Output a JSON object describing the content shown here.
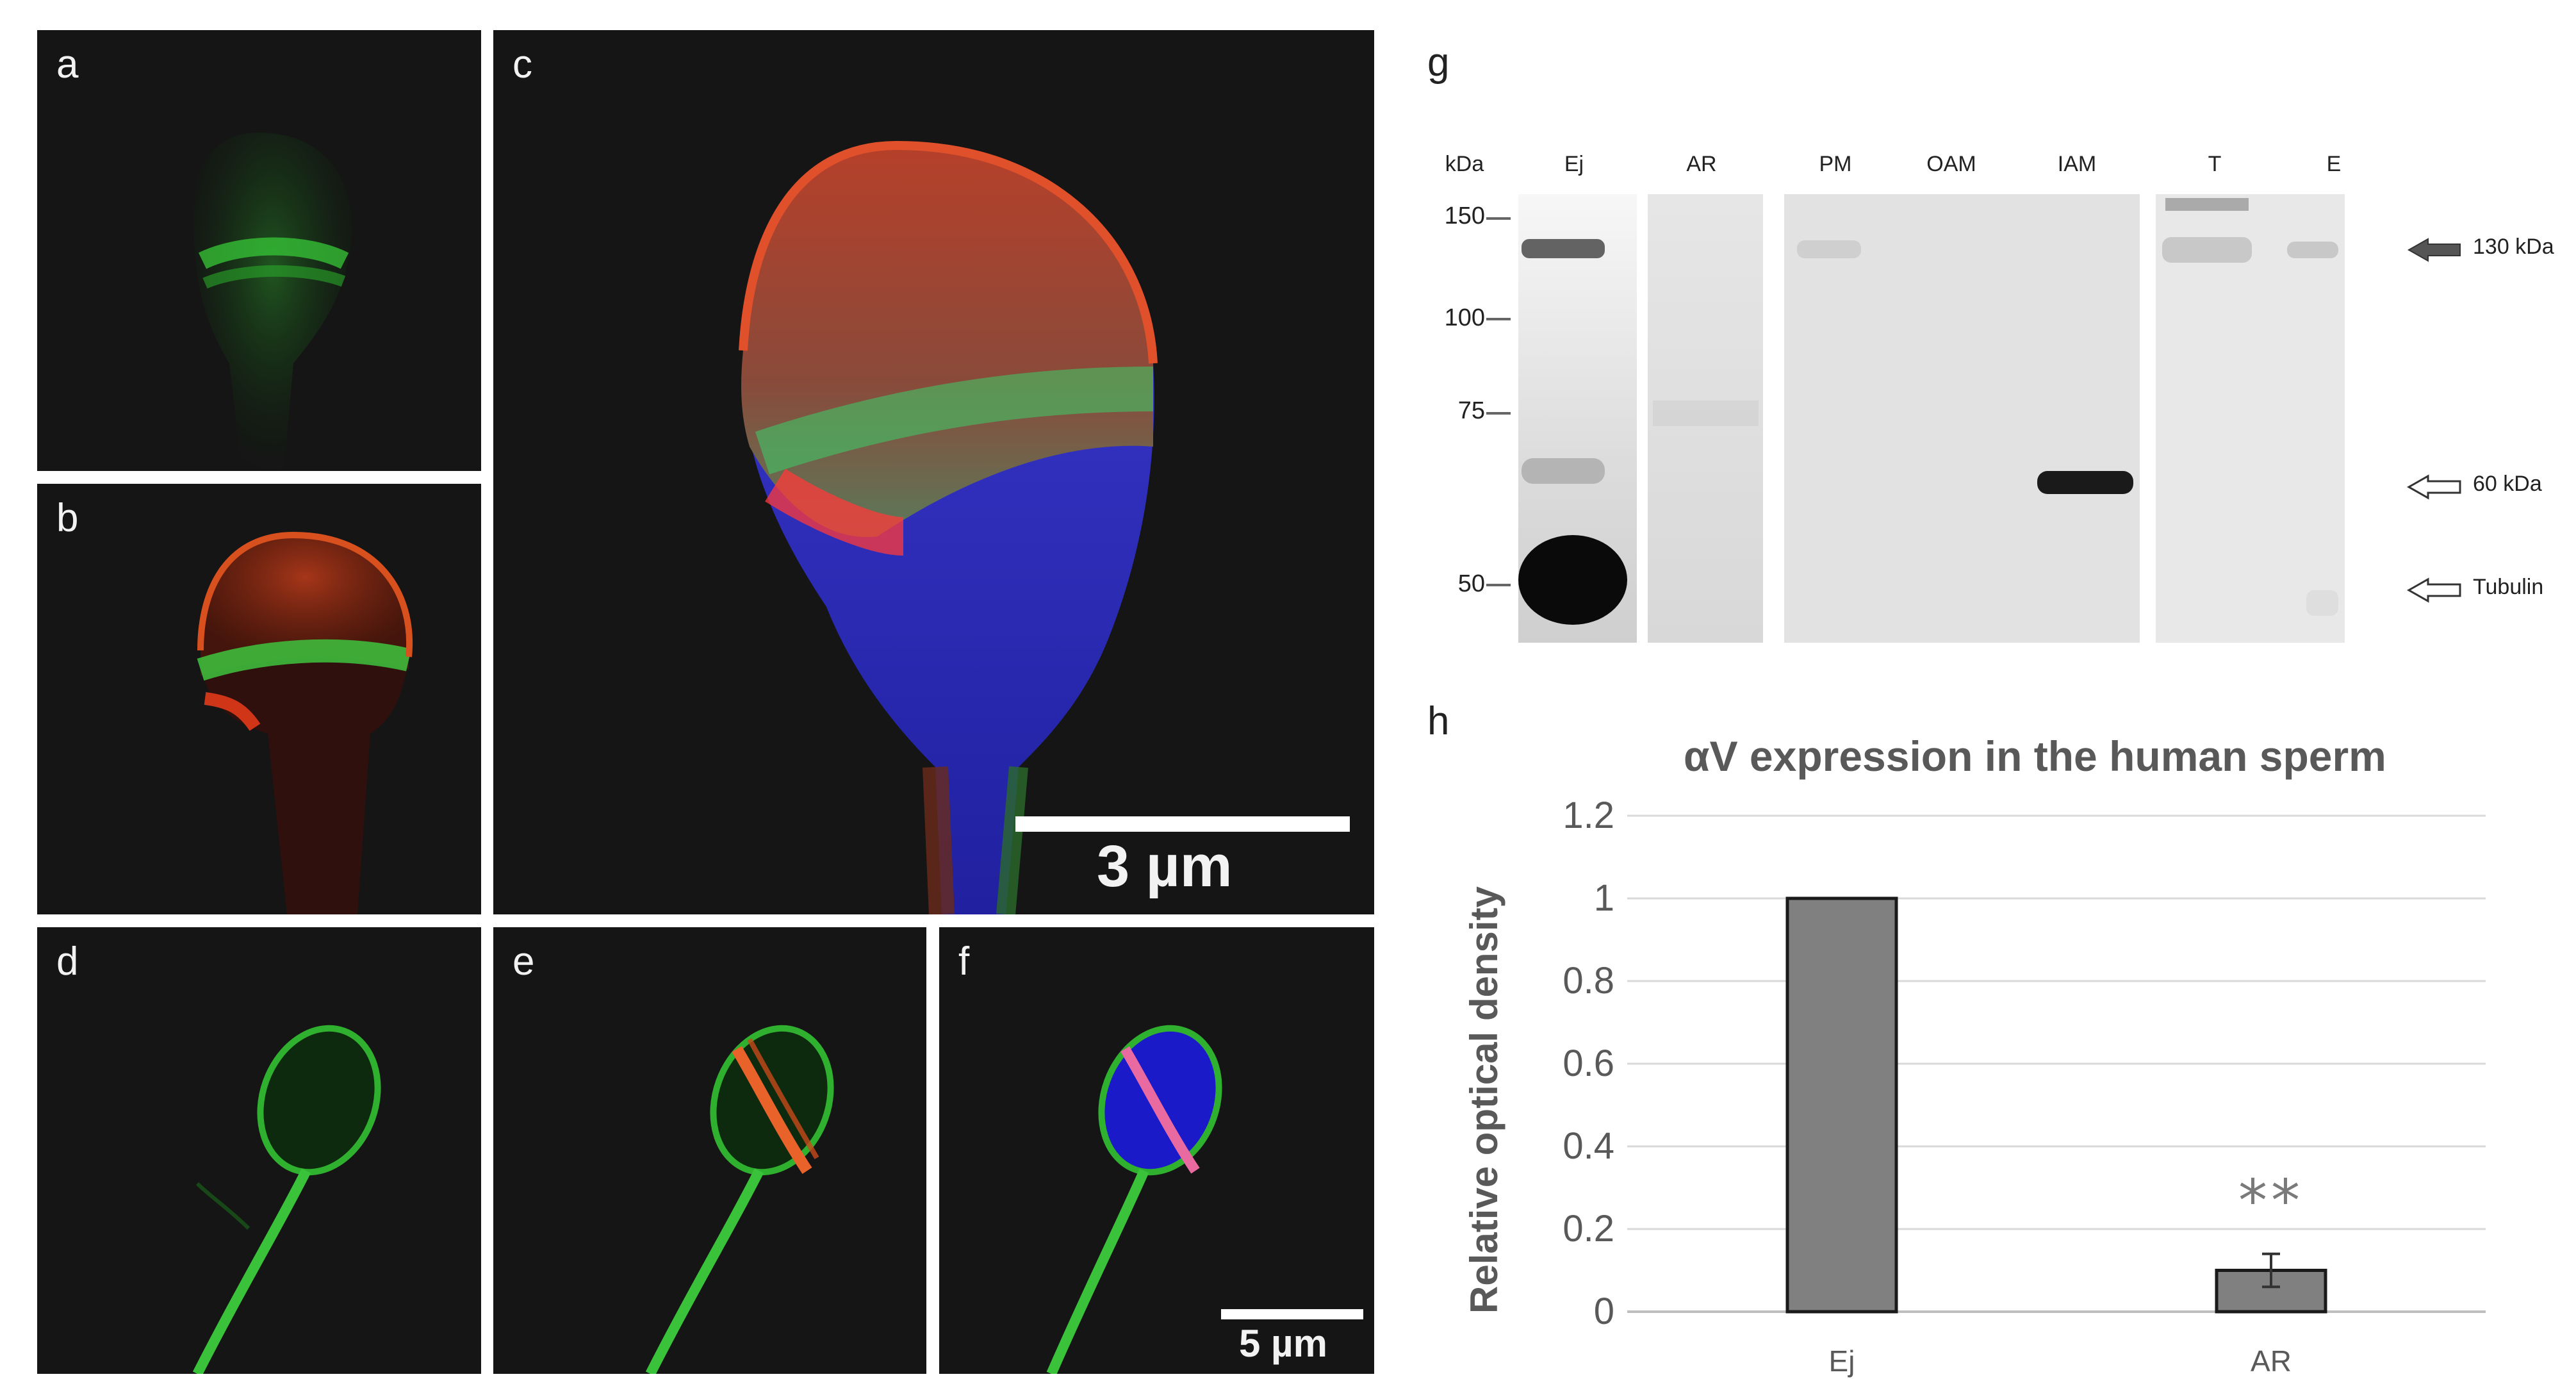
{
  "panels": {
    "a": {
      "letter": "a"
    },
    "b": {
      "letter": "b"
    },
    "c": {
      "letter": "c",
      "scalebar": "3 µm"
    },
    "d": {
      "letter": "d"
    },
    "e": {
      "letter": "e"
    },
    "f": {
      "letter": "f",
      "scalebar": "5 µm"
    }
  },
  "western_blot": {
    "letter": "g",
    "kda_label": "kDa",
    "lanes": [
      "Ej",
      "AR",
      "PM",
      "OAM",
      "IAM",
      "T",
      "E"
    ],
    "markers": [
      "150",
      "100",
      "75",
      "50"
    ],
    "arrows": [
      "130 kDa",
      "60 kDa",
      "Tubulin"
    ]
  },
  "chart_data": {
    "letter": "h",
    "type": "bar",
    "title": "αV expression in the human sperm",
    "ylabel": "Relative optical density",
    "xlabel": "",
    "categories": [
      "Ej",
      "AR"
    ],
    "values": [
      1,
      0.1
    ],
    "error": [
      0,
      0.04
    ],
    "ylim": [
      0,
      1.2
    ],
    "yticks": [
      "0",
      "0.2",
      "0.4",
      "0.6",
      "0.8",
      "1",
      "1.2"
    ],
    "significance": {
      "category": "AR",
      "label": "**"
    },
    "grid": true,
    "bar_color": "#808080"
  }
}
